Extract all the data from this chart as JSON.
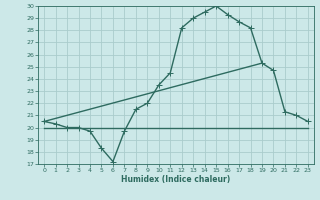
{
  "xlabel": "Humidex (Indice chaleur)",
  "xlim": [
    -0.5,
    23.5
  ],
  "ylim": [
    17,
    30
  ],
  "xticks": [
    0,
    1,
    2,
    3,
    4,
    5,
    6,
    7,
    8,
    9,
    10,
    11,
    12,
    13,
    14,
    15,
    16,
    17,
    18,
    19,
    20,
    21,
    22,
    23
  ],
  "yticks": [
    17,
    18,
    19,
    20,
    21,
    22,
    23,
    24,
    25,
    26,
    27,
    28,
    29,
    30
  ],
  "bg_color": "#cce8e8",
  "grid_color": "#aacccc",
  "line_color": "#2e6b60",
  "curve_x": [
    0,
    1,
    2,
    3,
    4,
    5,
    6,
    7,
    8,
    9,
    10,
    11,
    12,
    13,
    14,
    15,
    16,
    17,
    18,
    19,
    20,
    21,
    22,
    23
  ],
  "curve_y": [
    20.5,
    20.3,
    20.0,
    20.0,
    19.7,
    18.3,
    17.2,
    19.7,
    21.5,
    22.0,
    23.5,
    24.5,
    28.2,
    29.0,
    29.5,
    30.0,
    29.3,
    28.7,
    28.2,
    25.3,
    24.7,
    21.3,
    21.0,
    20.5
  ],
  "line1_x": [
    0,
    19
  ],
  "line1_y": [
    20.5,
    25.3
  ],
  "line2_x": [
    0,
    23
  ],
  "line2_y": [
    20.0,
    20.0
  ],
  "marker": "+",
  "markersize": 4,
  "linewidth": 1.0
}
